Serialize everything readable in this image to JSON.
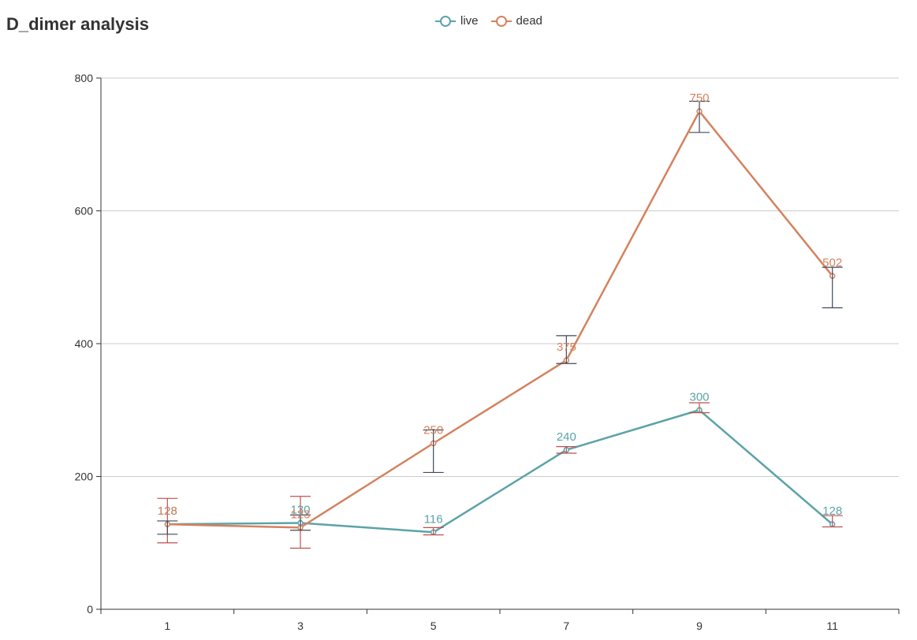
{
  "chart_data": {
    "type": "line",
    "title": "D_dimer analysis",
    "categories": [
      "1",
      "3",
      "5",
      "7",
      "9",
      "11"
    ],
    "ylim": [
      0,
      800
    ],
    "yticks": [
      0,
      200,
      400,
      600,
      800
    ],
    "grid": true,
    "legend_position": "top-center",
    "series": [
      {
        "name": "live",
        "color": "#5ba3a8",
        "values": [
          128,
          130,
          116,
          240,
          300,
          128
        ],
        "labels": [
          "128",
          "130",
          "116",
          "240",
          "300",
          "128"
        ],
        "error_low": [
          100,
          92,
          112,
          235,
          296,
          124
        ],
        "error_high": [
          167,
          170,
          123,
          245,
          311,
          141
        ]
      },
      {
        "name": "dead",
        "color": "#d4825e",
        "values": [
          128,
          123,
          250,
          375,
          750,
          502
        ],
        "labels": [
          "128",
          "123",
          "250",
          "375",
          "750",
          "502"
        ],
        "error_low": [
          113,
          119,
          206,
          370,
          718,
          454
        ],
        "error_high": [
          133,
          142,
          270,
          412,
          765,
          515
        ]
      }
    ]
  }
}
